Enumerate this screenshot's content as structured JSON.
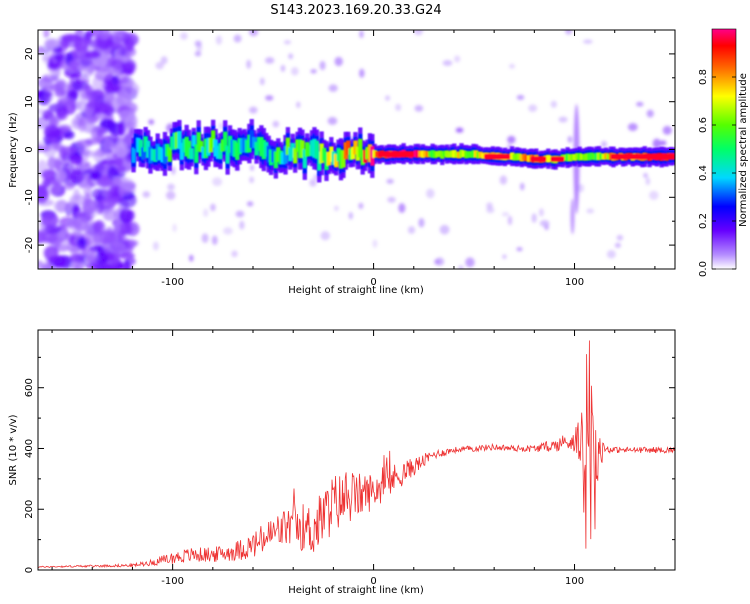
{
  "figure": {
    "title": "S143.2023.169.20.33.G24"
  },
  "chart_data": [
    {
      "type": "heatmap",
      "xlabel": "Height of straight line (km)",
      "ylabel": "Frequency (Hz)",
      "xlim": [
        -167,
        150
      ],
      "ylim": [
        -25,
        25
      ],
      "x_ticks": [
        -100,
        0,
        100
      ],
      "y_ticks": [
        -20,
        -10,
        0,
        10,
        20
      ],
      "colorbar": {
        "label": "Normalized spectral amplitude",
        "range": [
          0,
          1
        ],
        "ticks": [
          0.0,
          0.2,
          0.4,
          0.6,
          0.8
        ],
        "tick_labels": [
          "0.0",
          "0.2",
          "0.4",
          "0.6",
          "0.8"
        ],
        "colors": [
          "#ffffff",
          "#7a00ff",
          "#0000ff",
          "#00e5ff",
          "#00ff00",
          "#ffff00",
          "#ff0000",
          "#ff0088"
        ]
      },
      "ridge": {
        "x": [
          -120,
          -110,
          -100,
          -90,
          -80,
          -70,
          -60,
          -50,
          -40,
          -30,
          -20,
          -10,
          0,
          10,
          20,
          30,
          40,
          50,
          60,
          70,
          80,
          90,
          100,
          110,
          120,
          130,
          140,
          150
        ],
        "freq": [
          0,
          0,
          0.5,
          0.5,
          1,
          0,
          1,
          -1,
          0,
          -1,
          -1,
          0,
          -1,
          -1,
          -1,
          -1,
          -1,
          -1,
          -1.5,
          -1.5,
          -2,
          -2,
          -1.5,
          -1.5,
          -1.5,
          -1.5,
          -1.5,
          -1.5
        ],
        "amplitude": [
          0.35,
          0.4,
          0.5,
          0.45,
          0.5,
          0.45,
          0.4,
          0.45,
          0.5,
          0.55,
          0.6,
          0.7,
          0.8,
          0.95,
          0.95,
          0.6,
          0.7,
          0.65,
          0.85,
          0.7,
          0.85,
          0.6,
          0.65,
          0.6,
          0.8,
          0.85,
          0.9,
          0.95
        ]
      }
    },
    {
      "type": "line",
      "xlabel": "Height of straight line (km)",
      "ylabel": "SNR (10 * v/v)",
      "xlim": [
        -167,
        150
      ],
      "ylim": [
        0,
        790
      ],
      "x_ticks": [
        -100,
        0,
        100
      ],
      "y_ticks": [
        0,
        200,
        400,
        600
      ],
      "series": [
        {
          "color": "#ee3333",
          "x": [
            -167,
            -150,
            -130,
            -120,
            -110,
            -100,
            -90,
            -80,
            -70,
            -60,
            -50,
            -40,
            -30,
            -20,
            -10,
            0,
            10,
            20,
            30,
            40,
            50,
            60,
            70,
            80,
            90,
            95,
            100,
            105,
            108,
            110,
            115,
            120,
            130,
            140,
            150
          ],
          "y": [
            10,
            12,
            14,
            15,
            25,
            40,
            50,
            50,
            60,
            80,
            120,
            150,
            130,
            220,
            240,
            260,
            300,
            340,
            380,
            395,
            400,
            405,
            400,
            400,
            410,
            420,
            430,
            420,
            420,
            400,
            400,
            395,
            395,
            395,
            395
          ],
          "noise": [
            2,
            3,
            4,
            5,
            10,
            20,
            25,
            25,
            30,
            45,
            60,
            70,
            90,
            100,
            80,
            60,
            50,
            30,
            15,
            10,
            10,
            10,
            10,
            12,
            20,
            30,
            40,
            120,
            200,
            150,
            15,
            10,
            10,
            10,
            10
          ]
        }
      ]
    }
  ]
}
